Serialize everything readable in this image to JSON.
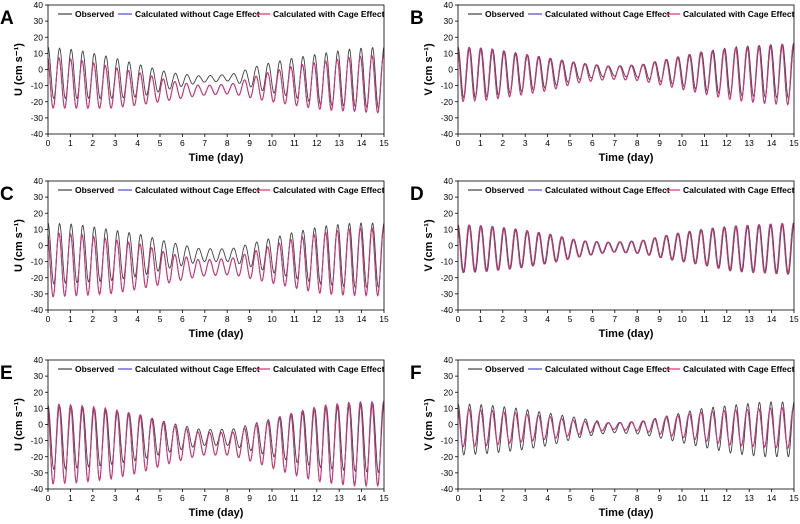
{
  "legend": {
    "observed": "Observed",
    "without": "Calculated without Cage Effect",
    "with": "Calculated with Cage Effect"
  },
  "colors": {
    "observed": "#404040",
    "without": "#4a4ad0",
    "with": "#d6336c"
  },
  "chart_data": [
    {
      "panel": "A",
      "type": "line",
      "component": "U",
      "xlabel": "Time (day)",
      "ylabel": "U (cm s⁻¹)",
      "xlim": [
        0,
        15
      ],
      "ylim": [
        -40,
        40
      ],
      "xticks": [
        0,
        1,
        2,
        3,
        4,
        5,
        6,
        7,
        8,
        9,
        10,
        11,
        12,
        13,
        14,
        15
      ],
      "yticks": [
        -40,
        -30,
        -20,
        -10,
        0,
        10,
        20,
        30,
        40
      ],
      "series": [
        {
          "name": "Observed",
          "mean": [
            -2,
            -3,
            -5,
            -7,
            -7,
            -6,
            -5,
            -5,
            -5,
            -6,
            -5,
            -5
          ],
          "amp": [
            16,
            15,
            13,
            10,
            5,
            2,
            2,
            8,
            12,
            16,
            18,
            19
          ]
        },
        {
          "name": "Calculated without Cage Effect",
          "mean": [
            -8,
            -9,
            -11,
            -12,
            -13,
            -13,
            -12,
            -11,
            -10,
            -10,
            -9,
            -9
          ],
          "amp": [
            16,
            15,
            13,
            10,
            6,
            3,
            3,
            8,
            12,
            15,
            17,
            18
          ]
        },
        {
          "name": "Calculated with Cage Effect",
          "mean": [
            -8,
            -9,
            -11,
            -12,
            -13,
            -13,
            -12,
            -11,
            -10,
            -10,
            -9,
            -9
          ],
          "amp": [
            16,
            15,
            13,
            10,
            6,
            3,
            3,
            8,
            12,
            15,
            17,
            18
          ]
        }
      ]
    },
    {
      "panel": "B",
      "type": "line",
      "component": "V",
      "xlabel": "Time (day)",
      "ylabel": "V (cm s⁻¹)",
      "xlim": [
        0,
        15
      ],
      "ylim": [
        -40,
        40
      ],
      "xticks": [
        0,
        1,
        2,
        3,
        4,
        5,
        6,
        7,
        8,
        9,
        10,
        11,
        12,
        13,
        14,
        15
      ],
      "yticks": [
        -40,
        -30,
        -20,
        -10,
        0,
        10,
        20,
        30,
        40
      ],
      "series": [
        {
          "name": "Observed",
          "mean": [
            -2,
            -2,
            -2,
            -2,
            -1,
            -1,
            -1,
            -1,
            -1,
            -1,
            -1,
            -1
          ],
          "amp": [
            16,
            15,
            12,
            9,
            5,
            3,
            4,
            8,
            12,
            15,
            16,
            17
          ]
        },
        {
          "name": "Calculated without Cage Effect",
          "mean": [
            -3,
            -3,
            -3,
            -3,
            -2,
            -2,
            -2,
            -2,
            -2,
            -3,
            -3,
            -3
          ],
          "amp": [
            17,
            16,
            13,
            10,
            6,
            4,
            5,
            9,
            13,
            16,
            18,
            19
          ]
        },
        {
          "name": "Calculated with Cage Effect",
          "mean": [
            -3,
            -3,
            -3,
            -3,
            -2,
            -2,
            -2,
            -2,
            -2,
            -3,
            -3,
            -3
          ],
          "amp": [
            17,
            16,
            13,
            10,
            6,
            4,
            5,
            9,
            13,
            16,
            18,
            19
          ]
        }
      ]
    },
    {
      "panel": "C",
      "type": "line",
      "component": "U",
      "xlabel": "Time (day)",
      "ylabel": "U (cm s⁻¹)",
      "xlim": [
        0,
        15
      ],
      "ylim": [
        -40,
        40
      ],
      "xticks": [
        0,
        1,
        2,
        3,
        4,
        5,
        6,
        7,
        8,
        9,
        10,
        11,
        12,
        13,
        14,
        15
      ],
      "yticks": [
        -40,
        -30,
        -20,
        -10,
        0,
        10,
        20,
        30,
        40
      ],
      "series": [
        {
          "name": "Observed",
          "mean": [
            -5,
            -5,
            -6,
            -6,
            -6,
            -6,
            -6,
            -6,
            -6,
            -6,
            -6,
            -6
          ],
          "amp": [
            19,
            18,
            16,
            13,
            8,
            4,
            4,
            9,
            14,
            18,
            20,
            20
          ]
        },
        {
          "name": "Calculated without Cage Effect",
          "mean": [
            -12,
            -12,
            -13,
            -13,
            -14,
            -14,
            -13,
            -12,
            -11,
            -11,
            -10,
            -10
          ],
          "amp": [
            20,
            19,
            17,
            14,
            9,
            5,
            5,
            10,
            15,
            19,
            21,
            21
          ]
        },
        {
          "name": "Calculated with Cage Effect",
          "mean": [
            -12,
            -12,
            -13,
            -13,
            -14,
            -14,
            -13,
            -12,
            -11,
            -11,
            -10,
            -10
          ],
          "amp": [
            20,
            19,
            17,
            14,
            9,
            5,
            5,
            10,
            15,
            19,
            21,
            21
          ]
        }
      ]
    },
    {
      "panel": "D",
      "type": "line",
      "component": "V",
      "xlabel": "Time (day)",
      "ylabel": "V (cm s⁻¹)",
      "xlim": [
        0,
        15
      ],
      "ylim": [
        -40,
        40
      ],
      "xticks": [
        0,
        1,
        2,
        3,
        4,
        5,
        6,
        7,
        8,
        9,
        10,
        11,
        12,
        13,
        14,
        15
      ],
      "yticks": [
        -40,
        -30,
        -20,
        -10,
        0,
        10,
        20,
        30,
        40
      ],
      "series": [
        {
          "name": "Observed",
          "mean": [
            -2,
            -2,
            -2,
            -2,
            -2,
            -1,
            -1,
            -1,
            -1,
            -2,
            -2,
            -2
          ],
          "amp": [
            15,
            14,
            12,
            9,
            5,
            3,
            4,
            8,
            11,
            14,
            15,
            16
          ]
        },
        {
          "name": "Calculated without Cage Effect",
          "mean": [
            -2,
            -2,
            -2,
            -2,
            -2,
            -1,
            -1,
            -1,
            -1,
            -2,
            -2,
            -2
          ],
          "amp": [
            15,
            14,
            12,
            9,
            5,
            3,
            4,
            8,
            11,
            14,
            15,
            16
          ]
        },
        {
          "name": "Calculated with Cage Effect",
          "mean": [
            -2,
            -2,
            -2,
            -2,
            -2,
            -1,
            -1,
            -1,
            -1,
            -2,
            -2,
            -2
          ],
          "amp": [
            15,
            14,
            12,
            9,
            5,
            3,
            4,
            8,
            11,
            14,
            15,
            16
          ]
        }
      ]
    },
    {
      "panel": "E",
      "type": "line",
      "component": "U",
      "xlabel": "Time (day)",
      "ylabel": "U (cm s⁻¹)",
      "xlim": [
        0,
        15
      ],
      "ylim": [
        -40,
        40
      ],
      "xticks": [
        0,
        1,
        2,
        3,
        4,
        5,
        6,
        7,
        8,
        9,
        10,
        11,
        12,
        13,
        14,
        15
      ],
      "yticks": [
        -40,
        -30,
        -20,
        -10,
        0,
        10,
        20,
        30,
        40
      ],
      "series": [
        {
          "name": "Observed",
          "mean": [
            -8,
            -8,
            -8,
            -8,
            -8,
            -8,
            -8,
            -8,
            -8,
            -8,
            -8,
            -8
          ],
          "amp": [
            20,
            19,
            17,
            14,
            9,
            5,
            5,
            10,
            15,
            19,
            21,
            22
          ]
        },
        {
          "name": "Calculated without Cage Effect",
          "mean": [
            -12,
            -12,
            -12,
            -12,
            -12,
            -12,
            -12,
            -12,
            -12,
            -12,
            -12,
            -12
          ],
          "amp": [
            25,
            24,
            22,
            18,
            12,
            7,
            7,
            13,
            19,
            24,
            26,
            26
          ]
        },
        {
          "name": "Calculated with Cage Effect",
          "mean": [
            -12,
            -12,
            -12,
            -12,
            -12,
            -12,
            -12,
            -12,
            -12,
            -12,
            -12,
            -12
          ],
          "amp": [
            25,
            24,
            22,
            18,
            12,
            7,
            7,
            13,
            19,
            24,
            26,
            26
          ]
        }
      ]
    },
    {
      "panel": "F",
      "type": "line",
      "component": "V",
      "xlabel": "Time (day)",
      "ylabel": "V (cm s⁻¹)",
      "xlim": [
        0,
        15
      ],
      "ylim": [
        -40,
        40
      ],
      "xticks": [
        0,
        1,
        2,
        3,
        4,
        5,
        6,
        7,
        8,
        9,
        10,
        11,
        12,
        13,
        14,
        15
      ],
      "yticks": [
        -40,
        -30,
        -20,
        -10,
        0,
        10,
        20,
        30,
        40
      ],
      "series": [
        {
          "name": "Observed",
          "mean": [
            -3,
            -3,
            -3,
            -3,
            -2,
            -2,
            -2,
            -2,
            -2,
            -3,
            -3,
            -3
          ],
          "amp": [
            16,
            15,
            13,
            10,
            6,
            3,
            4,
            8,
            12,
            15,
            17,
            17
          ]
        },
        {
          "name": "Calculated without Cage Effect",
          "mean": [
            -2,
            -2,
            -2,
            -2,
            -2,
            -1,
            -1,
            -1,
            -1,
            -2,
            -2,
            -2
          ],
          "amp": [
            12,
            11,
            9,
            7,
            4,
            2,
            3,
            6,
            9,
            11,
            12,
            13
          ]
        },
        {
          "name": "Calculated with Cage Effect",
          "mean": [
            -2,
            -2,
            -2,
            -2,
            -2,
            -1,
            -1,
            -1,
            -1,
            -2,
            -2,
            -2
          ],
          "amp": [
            12,
            11,
            9,
            7,
            4,
            2,
            3,
            6,
            9,
            11,
            12,
            13
          ]
        }
      ]
    }
  ]
}
